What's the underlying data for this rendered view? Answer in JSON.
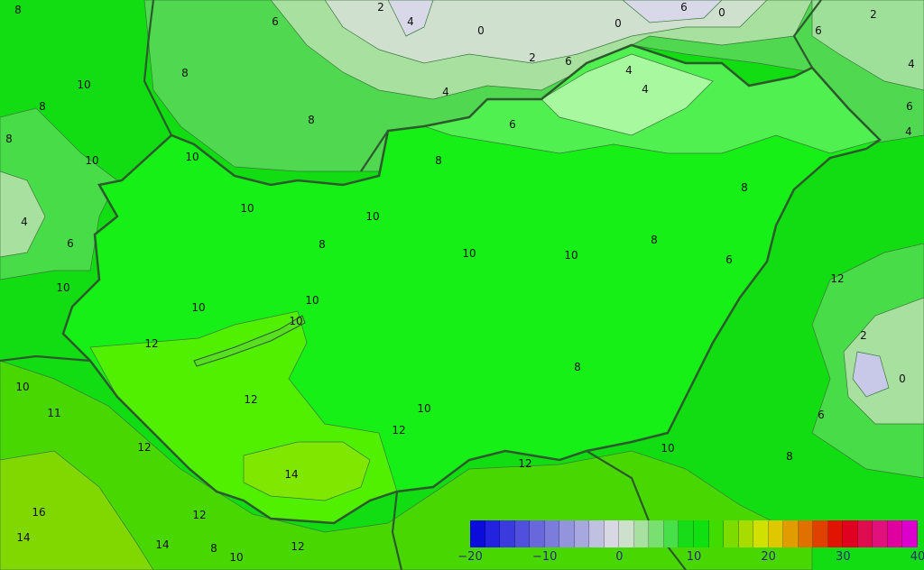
{
  "map": {
    "contour_labels": [
      "8",
      "6",
      "2",
      "4",
      "0",
      "0",
      "2",
      "6",
      "4",
      "6",
      "0",
      "6",
      "4",
      "2",
      "6",
      "4",
      "10",
      "8",
      "8",
      "8",
      "4",
      "10",
      "6",
      "4",
      "6",
      "8",
      "10",
      "10",
      "10",
      "8",
      "10",
      "10",
      "10",
      "10",
      "8",
      "8",
      "6",
      "12",
      "12",
      "10",
      "10",
      "8",
      "2",
      "0",
      "6",
      "12",
      "14",
      "12",
      "10",
      "8",
      "4",
      "10",
      "11",
      "12",
      "16",
      "14",
      "12",
      "14",
      "8",
      "10",
      "12",
      "12",
      "10",
      "8"
    ],
    "country_border_color": "#2d5a2d"
  },
  "legend": {
    "min": -20,
    "max": 40,
    "step": 2,
    "tick_labels": [
      "−20",
      "−10",
      "0",
      "10",
      "20",
      "30",
      "40"
    ],
    "colors": [
      "#0b0bdc",
      "#2222e0",
      "#3a3ade",
      "#5050dc",
      "#6868dc",
      "#7c7cdc",
      "#9494dc",
      "#a8a8e0",
      "#c0c0e0",
      "#d8d8e4",
      "#cce0cc",
      "#a8e0a0",
      "#78e070",
      "#48e048",
      "#18dc18",
      "#10e010",
      "#40dc00",
      "#7cdc00",
      "#a8dc00",
      "#d0e000",
      "#e0c800",
      "#e09c00",
      "#e07000",
      "#e04000",
      "#e01400",
      "#e00020",
      "#e00c50",
      "#e0107c",
      "#e000a0",
      "#dc00cc"
    ]
  }
}
